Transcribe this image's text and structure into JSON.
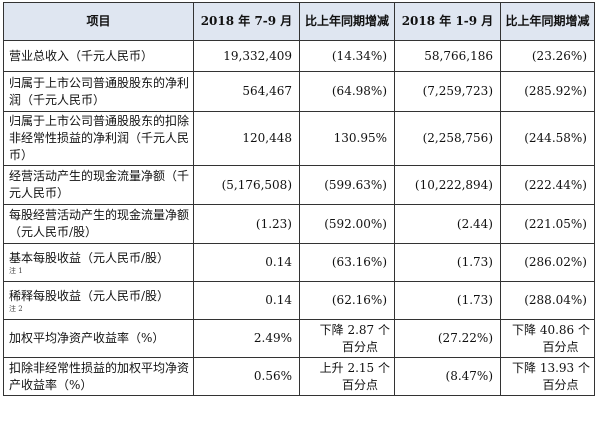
{
  "headers": {
    "item": "项目",
    "q3_2018": "2018 年 7-9 月",
    "yoy_change_1": "比上年同期增减",
    "ytd_2018": "2018 年 1-9 月",
    "yoy_change_2": "比上年同期增减"
  },
  "rows": [
    {
      "label": "营业总收入（千元人民币）",
      "note": "",
      "q3": "19,332,409",
      "q3_change": "(14.34%)",
      "ytd": "58,766,186",
      "ytd_change": "(23.26%)"
    },
    {
      "label": "归属于上市公司普通股股东的净利润（千元人民币）",
      "note": "",
      "q3": "564,467",
      "q3_change": "(64.98%)",
      "ytd": "(7,259,723)",
      "ytd_change": "(285.92%)"
    },
    {
      "label": "归属于上市公司普通股股东的扣除非经常性损益的净利润（千元人民币）",
      "note": "",
      "q3": "120,448",
      "q3_change": "130.95%",
      "ytd": "(2,258,756)",
      "ytd_change": "(244.58%)"
    },
    {
      "label": "经营活动产生的现金流量净额（千元人民币）",
      "note": "",
      "q3": "(5,176,508)",
      "q3_change": "(599.63%)",
      "ytd": "(10,222,894)",
      "ytd_change": "(222.44%)"
    },
    {
      "label": "每股经营活动产生的现金流量净额（元人民币/股）",
      "note": "",
      "q3": "(1.23)",
      "q3_change": "(592.00%)",
      "ytd": "(2.44)",
      "ytd_change": "(221.05%)"
    },
    {
      "label": "基本每股收益（元人民币/股）",
      "note": "注 1",
      "q3": "0.14",
      "q3_change": "(63.16%)",
      "ytd": "(1.73)",
      "ytd_change": "(286.02%)"
    },
    {
      "label": "稀释每股收益（元人民币/股）",
      "note": "注 2",
      "q3": "0.14",
      "q3_change": "(62.16%)",
      "ytd": "(1.73)",
      "ytd_change": "(288.04%)"
    },
    {
      "label": "加权平均净资产收益率（%）",
      "note": "",
      "q3": "2.49%",
      "q3_change_line1": "下降 2.87 个",
      "q3_change_line2": "百分点",
      "ytd": "(27.22%)",
      "ytd_change_line1": "下降 40.86 个",
      "ytd_change_line2": "百分点"
    },
    {
      "label": "扣除非经常性损益的加权平均净资产收益率（%）",
      "note": "",
      "q3": "0.56%",
      "q3_change_line1": "上升 2.15 个",
      "q3_change_line2": "百分点",
      "ytd": "(8.47%)",
      "ytd_change_line1": "下降 13.93 个",
      "ytd_change_line2": "百分点"
    }
  ]
}
